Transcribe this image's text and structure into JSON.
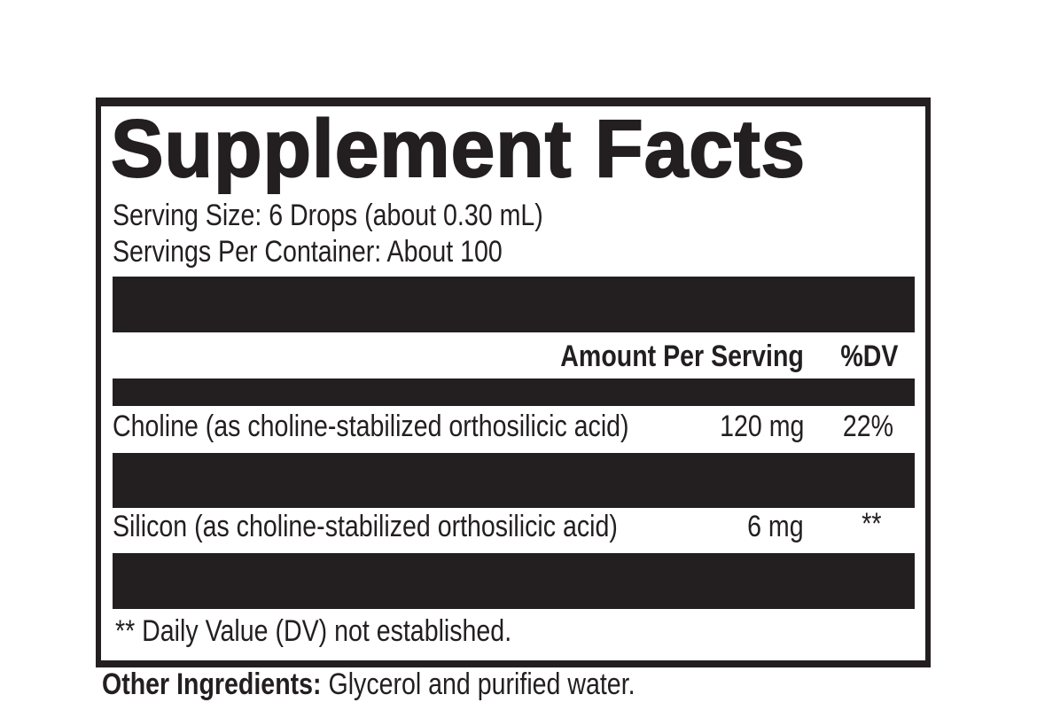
{
  "label": {
    "title": "Supplement Facts",
    "serving_size": "Serving Size: 6 Drops (about 0.30 mL)",
    "servings_per_container": "Servings Per Container: About 100",
    "header": {
      "amount": "Amount Per Serving",
      "dv": "%DV"
    },
    "rows": [
      {
        "name": "Choline (as choline-stabilized orthosilicic acid)",
        "amount": "120 mg",
        "dv": "22%"
      },
      {
        "name": "Silicon (as choline-stabilized orthosilicic acid)",
        "amount": "6 mg",
        "dv": "**"
      }
    ],
    "footnote": "** Daily Value (DV) not established."
  },
  "other_ingredients": {
    "label": "Other Ingredients:",
    "value": "Glycerol and purified water."
  },
  "colors": {
    "ink": "#231f20",
    "background": "#ffffff"
  }
}
